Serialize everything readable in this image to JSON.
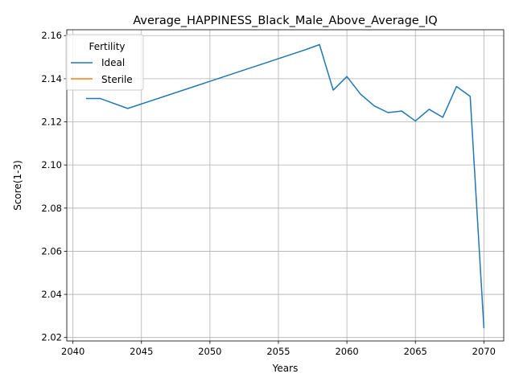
{
  "chart_data": {
    "type": "line",
    "title": "Average_HAPPINESS_Black_Male_Above_Average_IQ",
    "xlabel": "Years",
    "ylabel": "Score(1-3)",
    "xlim": [
      2039.55,
      2071.45
    ],
    "ylim": [
      2.0184,
      2.1627
    ],
    "xticks": [
      2040,
      2045,
      2050,
      2055,
      2060,
      2065,
      2070
    ],
    "xtick_labels": [
      "2040",
      "2045",
      "2050",
      "2055",
      "2060",
      "2065",
      "2070"
    ],
    "yticks": [
      2.02,
      2.04,
      2.06,
      2.08,
      2.1,
      2.12,
      2.14,
      2.16
    ],
    "ytick_labels": [
      "2.02",
      "2.04",
      "2.06",
      "2.08",
      "2.10",
      "2.12",
      "2.14",
      "2.16"
    ],
    "grid": true,
    "legend": {
      "title": "Fertility",
      "placement": "top-left",
      "entries": [
        "Ideal",
        "Sterile"
      ]
    },
    "series": [
      {
        "name": "Ideal",
        "color": "#1f77b4",
        "x": [
          2041,
          2042,
          2044,
          2057,
          2058,
          2059,
          2060,
          2061,
          2062,
          2063,
          2064,
          2065,
          2066,
          2067,
          2068,
          2069,
          2070
        ],
        "y": [
          2.1308,
          2.1308,
          2.1262,
          2.1535,
          2.1558,
          2.1347,
          2.141,
          2.1328,
          2.1274,
          2.1243,
          2.125,
          2.1204,
          2.1258,
          2.1221,
          2.1364,
          2.1318,
          2.0246
        ]
      },
      {
        "name": "Sterile",
        "color": "#ff7f0e",
        "x": [],
        "y": []
      }
    ]
  }
}
